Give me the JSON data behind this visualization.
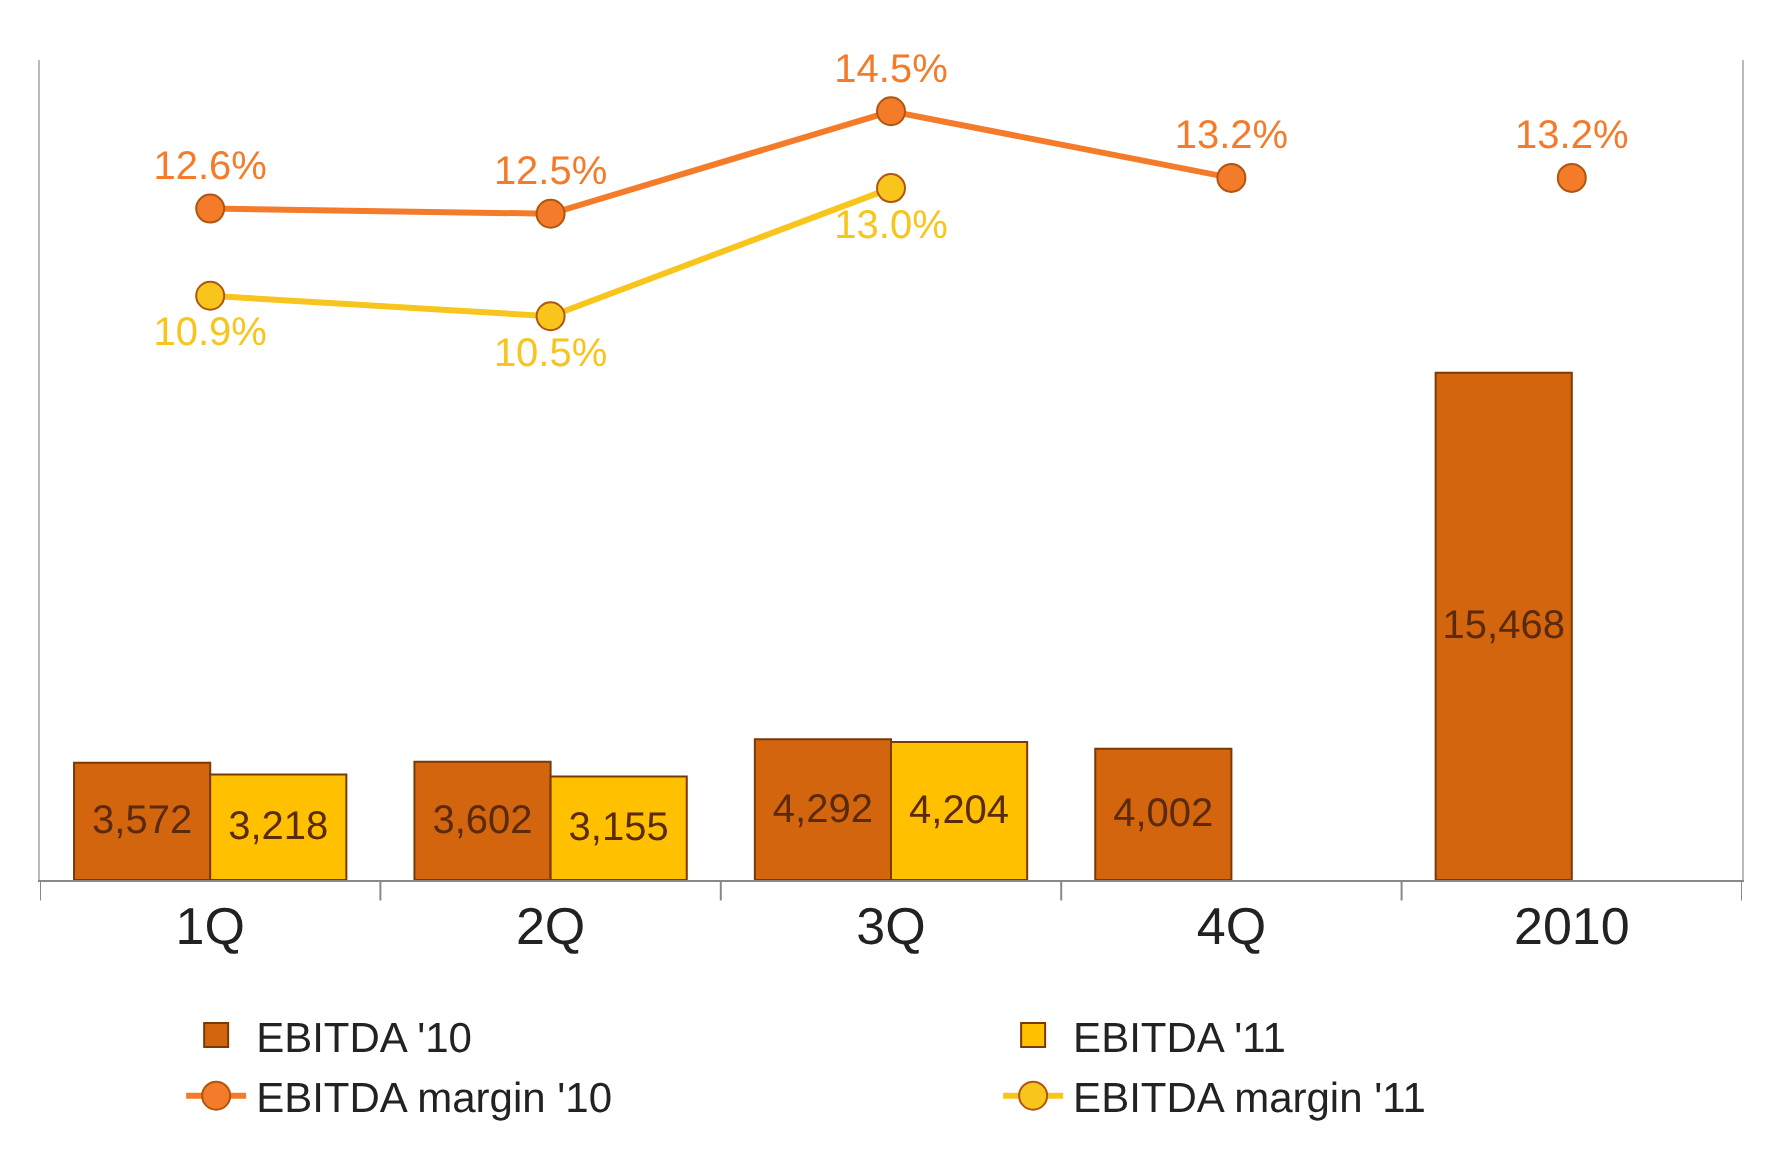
{
  "chart_data": {
    "type": "bar",
    "categories": [
      "1Q",
      "2Q",
      "3Q",
      "4Q",
      "2010"
    ],
    "legend": "bottom",
    "marker": "circle",
    "ylim": [
      0,
      25000
    ],
    "y2lim": [
      -0.5,
      15.5
    ],
    "series": [
      {
        "name": "EBITDA '10",
        "color": "#d4650f",
        "values": [
          3572,
          3602,
          4292,
          4002,
          15468
        ],
        "value_labels": [
          "3,572",
          "3,602",
          "4,292",
          "4,002",
          "15,468"
        ]
      },
      {
        "name": "EBITDA '11",
        "color": "#ffc000",
        "values": [
          3218,
          3155,
          4204,
          null,
          null
        ],
        "value_labels": [
          "3,218",
          "3,155",
          "4,204",
          null,
          null
        ]
      },
      {
        "name": "EBITDA margin '10",
        "type": "line",
        "axis": "y2",
        "color": "#f47b2a",
        "values": [
          12.6,
          12.5,
          14.5,
          13.2,
          null
        ],
        "value_labels": [
          "12.6%",
          "12.5%",
          "14.5%",
          "13.2%",
          null
        ]
      },
      {
        "name": "EBITDA margin '11",
        "type": "line",
        "axis": "y2",
        "color": "#f8c51c",
        "values": [
          10.9,
          10.5,
          13.0,
          null,
          null
        ],
        "value_labels": [
          "10.9%",
          "10.5%",
          "13.0%",
          null,
          null
        ]
      },
      {
        "type": "line",
        "axis": "y2",
        "color": "#f47b2a",
        "values": [
          null,
          null,
          null,
          null,
          13.2
        ],
        "value_labels": [
          null,
          null,
          null,
          null,
          "13.2%"
        ]
      }
    ]
  }
}
